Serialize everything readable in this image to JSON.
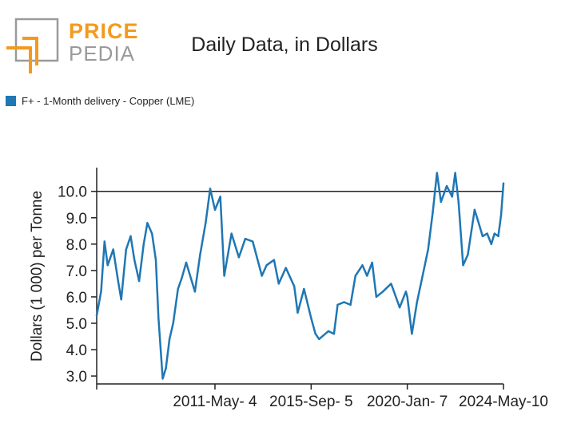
{
  "logo": {
    "word_top": "PRICE",
    "word_bottom": "PEDIA"
  },
  "colors": {
    "series": "#1f77b4",
    "reference_line": "#222222",
    "logo_orange": "#f39a1e",
    "logo_gray": "#9a9a9a"
  },
  "chart_data": {
    "type": "line",
    "title": "Daily Data, in Dollars",
    "ylabel": "Dollars (1 000) per Tonne",
    "xlabel": "",
    "ylim": [
      2.7,
      10.9
    ],
    "xlim": [
      "2006-01-01",
      "2024-05-10"
    ],
    "y_ticks": [
      "3.0",
      "4.0",
      "5.0",
      "6.0",
      "7.0",
      "8.0",
      "9.0",
      "10.0"
    ],
    "x_ticks": [
      {
        "label": "2011-May- 4",
        "date": "2011-05-04"
      },
      {
        "label": "2015-Sep- 5",
        "date": "2015-09-05"
      },
      {
        "label": "2020-Jan- 7",
        "date": "2020-01-07"
      },
      {
        "label": "2024-May-10",
        "date": "2024-05-10"
      }
    ],
    "reference_line": {
      "y": 10.0
    },
    "grid": false,
    "legend": {
      "position": "top-left"
    },
    "series": [
      {
        "name": "F+ - 1-Month delivery - Copper (LME)",
        "points": [
          [
            "2006-01-01",
            5.3
          ],
          [
            "2006-03-15",
            6.2
          ],
          [
            "2006-05-10",
            8.1
          ],
          [
            "2006-07-01",
            7.2
          ],
          [
            "2006-10-01",
            7.8
          ],
          [
            "2006-12-20",
            6.6
          ],
          [
            "2007-02-10",
            5.9
          ],
          [
            "2007-05-01",
            7.8
          ],
          [
            "2007-07-15",
            8.3
          ],
          [
            "2007-09-15",
            7.4
          ],
          [
            "2007-12-01",
            6.6
          ],
          [
            "2008-02-15",
            8.0
          ],
          [
            "2008-04-15",
            8.8
          ],
          [
            "2008-07-01",
            8.4
          ],
          [
            "2008-09-01",
            7.4
          ],
          [
            "2008-10-15",
            5.2
          ],
          [
            "2008-12-24",
            2.9
          ],
          [
            "2009-02-15",
            3.3
          ],
          [
            "2009-04-15",
            4.4
          ],
          [
            "2009-06-15",
            5.0
          ],
          [
            "2009-09-01",
            6.3
          ],
          [
            "2009-11-01",
            6.7
          ],
          [
            "2010-01-15",
            7.3
          ],
          [
            "2010-06-08",
            6.2
          ],
          [
            "2010-09-01",
            7.6
          ],
          [
            "2010-12-01",
            8.8
          ],
          [
            "2011-02-14",
            10.1
          ],
          [
            "2011-05-04",
            9.3
          ],
          [
            "2011-08-01",
            9.8
          ],
          [
            "2011-10-04",
            6.8
          ],
          [
            "2012-02-01",
            8.4
          ],
          [
            "2012-06-01",
            7.5
          ],
          [
            "2012-09-15",
            8.2
          ],
          [
            "2013-01-15",
            8.1
          ],
          [
            "2013-06-15",
            6.8
          ],
          [
            "2013-09-01",
            7.2
          ],
          [
            "2014-01-01",
            7.4
          ],
          [
            "2014-03-20",
            6.5
          ],
          [
            "2014-07-15",
            7.1
          ],
          [
            "2014-12-01",
            6.4
          ],
          [
            "2015-01-26",
            5.4
          ],
          [
            "2015-05-10",
            6.3
          ],
          [
            "2015-09-05",
            5.2
          ],
          [
            "2015-11-15",
            4.6
          ],
          [
            "2016-01-15",
            4.4
          ],
          [
            "2016-06-15",
            4.7
          ],
          [
            "2016-09-15",
            4.6
          ],
          [
            "2016-11-15",
            5.7
          ],
          [
            "2017-03-01",
            5.8
          ],
          [
            "2017-06-15",
            5.7
          ],
          [
            "2017-09-05",
            6.8
          ],
          [
            "2017-12-28",
            7.2
          ],
          [
            "2018-03-15",
            6.8
          ],
          [
            "2018-06-07",
            7.3
          ],
          [
            "2018-08-15",
            6.0
          ],
          [
            "2018-12-01",
            6.2
          ],
          [
            "2019-04-15",
            6.5
          ],
          [
            "2019-09-03",
            5.6
          ],
          [
            "2019-12-15",
            6.2
          ],
          [
            "2020-01-07",
            6.0
          ],
          [
            "2020-03-23",
            4.6
          ],
          [
            "2020-06-15",
            5.8
          ],
          [
            "2020-09-15",
            6.8
          ],
          [
            "2020-12-15",
            7.8
          ],
          [
            "2021-03-01",
            9.2
          ],
          [
            "2021-05-10",
            10.7
          ],
          [
            "2021-07-15",
            9.6
          ],
          [
            "2021-10-18",
            10.2
          ],
          [
            "2022-01-15",
            9.8
          ],
          [
            "2022-03-07",
            10.7
          ],
          [
            "2022-05-01",
            9.6
          ],
          [
            "2022-07-15",
            7.2
          ],
          [
            "2022-10-01",
            7.6
          ],
          [
            "2023-01-20",
            9.3
          ],
          [
            "2023-03-15",
            8.9
          ],
          [
            "2023-06-01",
            8.3
          ],
          [
            "2023-08-15",
            8.4
          ],
          [
            "2023-10-23",
            8.0
          ],
          [
            "2023-12-15",
            8.4
          ],
          [
            "2024-02-15",
            8.3
          ],
          [
            "2024-04-01",
            9.1
          ],
          [
            "2024-05-10",
            10.3
          ]
        ]
      }
    ]
  }
}
